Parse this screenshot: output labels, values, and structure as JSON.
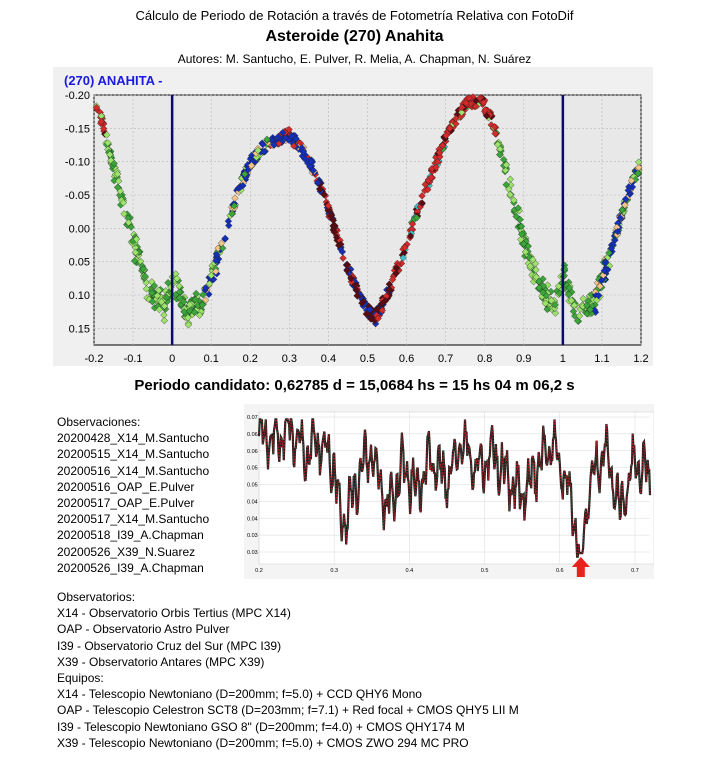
{
  "header": {
    "title_line1": "Cálculo de Periodo de Rotación a través de Fotometría Relativa con FotoDif",
    "title_main": "Asteroide (270) Anahita",
    "authors": "Autores: M. Santucho, E. Pulver, R. Melia, A. Chapman, N. Suárez"
  },
  "chart_data": [
    {
      "type": "scatter",
      "title": "(270) ANAHITA  -",
      "xlabel": "",
      "ylabel": "",
      "xlim": [
        -0.2,
        1.2
      ],
      "ylim": [
        -0.2,
        0.175
      ],
      "y_inverted": true,
      "x_ticks": [
        "-0.2",
        "-0.1",
        "0",
        "0.1",
        "0.2",
        "0.3",
        "0.4",
        "0.5",
        "0.6",
        "0.7",
        "0.8",
        "0.9",
        "1",
        "1.1",
        "1.2"
      ],
      "y_ticks": [
        "-0.20",
        "-0.15",
        "-0.10",
        "-0.05",
        "0.00",
        "0.05",
        "0.10",
        "0.15"
      ],
      "phase_markers": [
        0.0,
        1.0
      ],
      "background": "#e8e8e8",
      "series_colors": {
        "green": "#3aa63a",
        "light_green": "#9be36a",
        "blue": "#1430b8",
        "red": "#d42a2a",
        "dark_red": "#5a0c14",
        "peach": "#f5c48a",
        "cyan": "#40c0c8"
      },
      "lightcurve": {
        "phase": [
          0.0,
          0.04,
          0.08,
          0.12,
          0.16,
          0.2,
          0.24,
          0.28,
          0.3,
          0.33,
          0.37,
          0.41,
          0.45,
          0.49,
          0.52,
          0.55,
          0.59,
          0.63,
          0.67,
          0.71,
          0.75,
          0.79,
          0.82,
          0.86,
          0.9,
          0.94,
          0.98,
          1.0
        ],
        "mag": [
          0.07,
          0.13,
          0.11,
          0.04,
          -0.04,
          -0.1,
          -0.125,
          -0.135,
          -0.14,
          -0.12,
          -0.08,
          -0.01,
          0.06,
          0.115,
          0.135,
          0.1,
          0.04,
          -0.03,
          -0.09,
          -0.15,
          -0.185,
          -0.195,
          -0.16,
          -0.07,
          0.02,
          0.09,
          0.12,
          0.07
        ]
      }
    },
    {
      "type": "line",
      "title": "",
      "xlabel": "",
      "ylabel": "",
      "xlim": [
        0.2,
        0.72
      ],
      "x_ticks": [
        "0.2",
        "0.3",
        "0.4",
        "0.5",
        "0.6",
        "0.7"
      ],
      "y_ticks": [
        "0.07",
        "0.06",
        "0.06",
        "0.05",
        "0.05",
        "0.04",
        "0.04",
        "0.03",
        "0.03"
      ],
      "minimum_marker_x": 0.628,
      "periodogram": {
        "x": [
          0.2,
          0.22,
          0.24,
          0.26,
          0.28,
          0.3,
          0.31,
          0.33,
          0.35,
          0.37,
          0.39,
          0.41,
          0.43,
          0.45,
          0.47,
          0.49,
          0.51,
          0.53,
          0.55,
          0.57,
          0.59,
          0.61,
          0.628,
          0.64,
          0.66,
          0.68,
          0.7,
          0.72
        ],
        "y": [
          0.066,
          0.063,
          0.067,
          0.06,
          0.062,
          0.055,
          0.038,
          0.05,
          0.06,
          0.042,
          0.055,
          0.048,
          0.058,
          0.051,
          0.062,
          0.054,
          0.06,
          0.052,
          0.046,
          0.055,
          0.061,
          0.05,
          0.03,
          0.05,
          0.06,
          0.042,
          0.056,
          0.052
        ]
      }
    }
  ],
  "period": {
    "text": "Periodo candidato: 0,62785 d = 15,0684 hs = 15 hs 04 m 06,2 s"
  },
  "observations": {
    "heading": "Observaciones:",
    "items": [
      "20200428_X14_M.Santucho",
      "20200515_X14_M.Santucho",
      "20200516_X14_M.Santucho",
      "20200516_OAP_E.Pulver",
      "20200517_OAP_E.Pulver",
      "20200517_X14_M.Santucho",
      "20200518_I39_A.Chapman",
      "20200526_X39_N.Suarez",
      "20200526_I39_A.Chapman"
    ]
  },
  "observers": {
    "heading": "Observatorios:",
    "items": [
      "X14 - Observatorio Orbis Tertius (MPC X14)",
      "OAP - Observatorio Astro Pulver",
      "I39 - Observatorio Cruz del Sur (MPC I39)",
      "X39 - Observatorio Antares (MPC X39)"
    ],
    "equipment_heading": "Equipos:",
    "equipment": [
      "X14 - Telescopio Newtoniano (D=200mm; f=5.0) + CCD QHY6 Mono",
      "OAP - Telescopio Celestron SCT8 (D=203mm; f=7.1) + Red focal + CMOS QHY5 LII M",
      "I39 - Telescopio Newtoniano GSO 8\" (D=200mm; f=4.0) + CMOS QHY174 M",
      "X39 - Telescopio Newtoniano (D=200mm; f=5.0) + CMOS ZWO 294 MC PRO"
    ]
  }
}
